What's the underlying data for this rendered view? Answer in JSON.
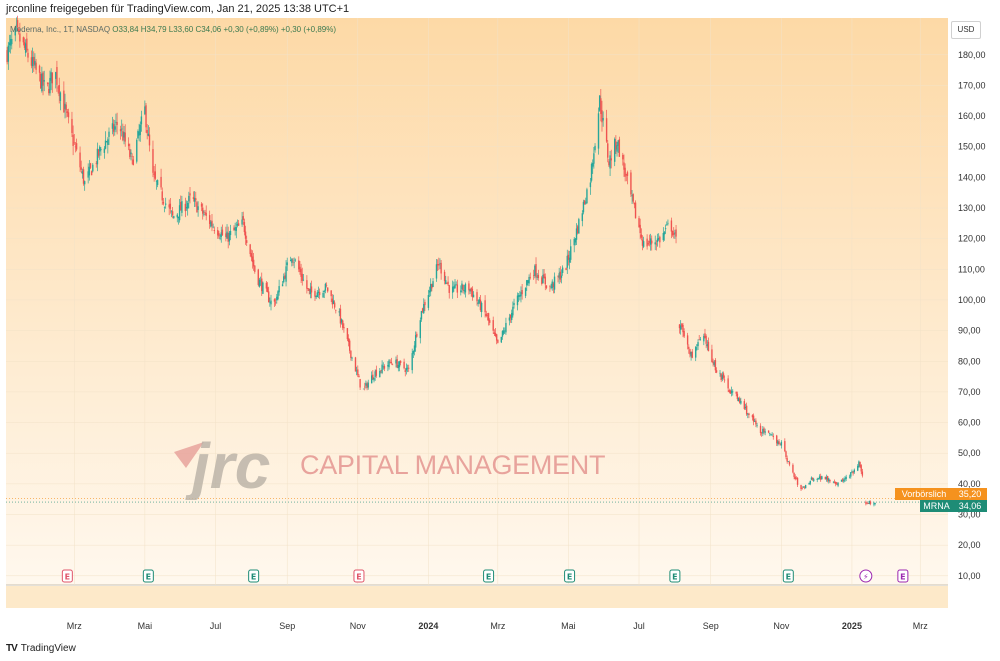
{
  "header": {
    "published_by": "jrconline freigegeben für TradingView.com, Jan 21, 2025 13:38 UTC+1"
  },
  "legend": {
    "symbol_text": "Moderna, Inc., 1T, NASDAQ",
    "ohlc": "O33,84  H34,79  L33,60  C34,06  +0,30 (+0,89%)  +0,30 (+0,89%)"
  },
  "currency_button": "USD",
  "watermark": {
    "logo": "jrc",
    "text": "CAPITAL MANAGEMENT"
  },
  "price_tags": {
    "premarket": {
      "label": "Vorbörslich",
      "value": "35,20",
      "price": 35.2,
      "color": "#f5921e"
    },
    "last": {
      "label": "MRNA",
      "value": "34,06",
      "price": 34.06,
      "color": "#1e8c76"
    }
  },
  "footer": {
    "logo": "TV",
    "brand": "TradingView"
  },
  "chart_data": {
    "type": "candlestick",
    "title": "Moderna, Inc., 1T, NASDAQ",
    "currency": "USD",
    "ylim": [
      7,
      192
    ],
    "y_ticks": [
      10,
      20,
      30,
      40,
      50,
      60,
      70,
      80,
      90,
      100,
      110,
      120,
      130,
      140,
      150,
      160,
      170,
      180
    ],
    "y_tick_labels": [
      "10,00",
      "20,00",
      "30,00",
      "40,00",
      "50,00",
      "60,00",
      "70,00",
      "80,00",
      "90,00",
      "100,00",
      "110,00",
      "120,00",
      "130,00",
      "140,00",
      "150,00",
      "160,00",
      "170,00",
      "180,00"
    ],
    "x_labels": [
      {
        "label": "Mrz",
        "date": "2023-03-01",
        "bold": false
      },
      {
        "label": "Mai",
        "date": "2023-05-01",
        "bold": false
      },
      {
        "label": "Jul",
        "date": "2023-07-01",
        "bold": false
      },
      {
        "label": "Sep",
        "date": "2023-09-01",
        "bold": false
      },
      {
        "label": "Nov",
        "date": "2023-11-01",
        "bold": false
      },
      {
        "label": "2024",
        "date": "2024-01-01",
        "bold": true
      },
      {
        "label": "Mrz",
        "date": "2024-03-01",
        "bold": false
      },
      {
        "label": "Mai",
        "date": "2024-05-01",
        "bold": false
      },
      {
        "label": "Jul",
        "date": "2024-07-01",
        "bold": false
      },
      {
        "label": "Sep",
        "date": "2024-09-01",
        "bold": false
      },
      {
        "label": "Nov",
        "date": "2024-11-01",
        "bold": false
      },
      {
        "label": "2025",
        "date": "2025-01-01",
        "bold": true
      },
      {
        "label": "Mrz",
        "date": "2025-03-01",
        "bold": false
      }
    ],
    "x_range": [
      "2023-01-01",
      "2025-03-25"
    ],
    "close_path": [
      {
        "date": "2023-01-01",
        "close": 180
      },
      {
        "date": "2023-01-10",
        "close": 187
      },
      {
        "date": "2023-01-25",
        "close": 176
      },
      {
        "date": "2023-02-05",
        "close": 168
      },
      {
        "date": "2023-02-12",
        "close": 175
      },
      {
        "date": "2023-02-25",
        "close": 156
      },
      {
        "date": "2023-03-10",
        "close": 138
      },
      {
        "date": "2023-03-25",
        "close": 150
      },
      {
        "date": "2023-04-08",
        "close": 158
      },
      {
        "date": "2023-04-20",
        "close": 145
      },
      {
        "date": "2023-05-01",
        "close": 162
      },
      {
        "date": "2023-05-08",
        "close": 140
      },
      {
        "date": "2023-05-25",
        "close": 127
      },
      {
        "date": "2023-06-10",
        "close": 133
      },
      {
        "date": "2023-06-25",
        "close": 126
      },
      {
        "date": "2023-07-10",
        "close": 120
      },
      {
        "date": "2023-07-25",
        "close": 125
      },
      {
        "date": "2023-08-05",
        "close": 108
      },
      {
        "date": "2023-08-20",
        "close": 98
      },
      {
        "date": "2023-09-05",
        "close": 115
      },
      {
        "date": "2023-09-20",
        "close": 102
      },
      {
        "date": "2023-10-05",
        "close": 104
      },
      {
        "date": "2023-10-15",
        "close": 96
      },
      {
        "date": "2023-10-28",
        "close": 80
      },
      {
        "date": "2023-11-05",
        "close": 70
      },
      {
        "date": "2023-11-15",
        "close": 76
      },
      {
        "date": "2023-12-01",
        "close": 80
      },
      {
        "date": "2023-12-15",
        "close": 77
      },
      {
        "date": "2023-12-25",
        "close": 95
      },
      {
        "date": "2024-01-10",
        "close": 112
      },
      {
        "date": "2024-01-20",
        "close": 103
      },
      {
        "date": "2024-02-05",
        "close": 104
      },
      {
        "date": "2024-02-20",
        "close": 95
      },
      {
        "date": "2024-03-01",
        "close": 85
      },
      {
        "date": "2024-03-15",
        "close": 98
      },
      {
        "date": "2024-04-01",
        "close": 110
      },
      {
        "date": "2024-04-15",
        "close": 104
      },
      {
        "date": "2024-04-28",
        "close": 110
      },
      {
        "date": "2024-05-10",
        "close": 125
      },
      {
        "date": "2024-05-20",
        "close": 140
      },
      {
        "date": "2024-05-28",
        "close": 165
      },
      {
        "date": "2024-06-05",
        "close": 145
      },
      {
        "date": "2024-06-12",
        "close": 152
      },
      {
        "date": "2024-06-25",
        "close": 132
      },
      {
        "date": "2024-07-05",
        "close": 118
      },
      {
        "date": "2024-07-20",
        "close": 120
      },
      {
        "date": "2024-07-28",
        "close": 125
      },
      {
        "date": "2024-08-03",
        "close": 118
      },
      {
        "date": "2024-08-05",
        "close": 92
      },
      {
        "date": "2024-08-15",
        "close": 82
      },
      {
        "date": "2024-08-25",
        "close": 88
      },
      {
        "date": "2024-09-05",
        "close": 78
      },
      {
        "date": "2024-09-15",
        "close": 72
      },
      {
        "date": "2024-09-28",
        "close": 66
      },
      {
        "date": "2024-10-12",
        "close": 58
      },
      {
        "date": "2024-10-25",
        "close": 55
      },
      {
        "date": "2024-11-01",
        "close": 53
      },
      {
        "date": "2024-11-10",
        "close": 44
      },
      {
        "date": "2024-11-18",
        "close": 38
      },
      {
        "date": "2024-11-28",
        "close": 42
      },
      {
        "date": "2024-12-10",
        "close": 42
      },
      {
        "date": "2024-12-20",
        "close": 40
      },
      {
        "date": "2025-01-03",
        "close": 44
      },
      {
        "date": "2025-01-07",
        "close": 47
      },
      {
        "date": "2025-01-10",
        "close": 42
      },
      {
        "date": "2025-01-13",
        "close": 34
      },
      {
        "date": "2025-01-21",
        "close": 34.06
      }
    ],
    "gaps": [
      [
        "2024-08-03",
        "2024-08-05"
      ],
      [
        "2025-01-10",
        "2025-01-13"
      ]
    ],
    "events": [
      {
        "type": "earnings",
        "date": "2023-02-23",
        "label": "E",
        "color": "#e0556a"
      },
      {
        "type": "earnings",
        "date": "2023-05-04",
        "label": "E",
        "color": "#1e8c76"
      },
      {
        "type": "earnings",
        "date": "2023-08-03",
        "label": "E",
        "color": "#1e8c76"
      },
      {
        "type": "earnings",
        "date": "2023-11-02",
        "label": "E",
        "color": "#e0556a"
      },
      {
        "type": "earnings",
        "date": "2024-02-22",
        "label": "E",
        "color": "#1e8c76"
      },
      {
        "type": "earnings",
        "date": "2024-05-02",
        "label": "E",
        "color": "#1e8c76"
      },
      {
        "type": "earnings",
        "date": "2024-08-01",
        "label": "E",
        "color": "#1e8c76"
      },
      {
        "type": "earnings",
        "date": "2024-11-07",
        "label": "E",
        "color": "#1e8c76"
      },
      {
        "type": "news",
        "date": "2025-01-13",
        "label": "⚡",
        "color": "#9c27b0"
      },
      {
        "type": "earnings",
        "date": "2025-02-14",
        "label": "E",
        "color": "#9c27b0"
      }
    ],
    "colors": {
      "up": "#26a69a",
      "down": "#ef5350"
    },
    "background_gradient": [
      "#fdd9a6",
      "#fff8ee"
    ]
  }
}
